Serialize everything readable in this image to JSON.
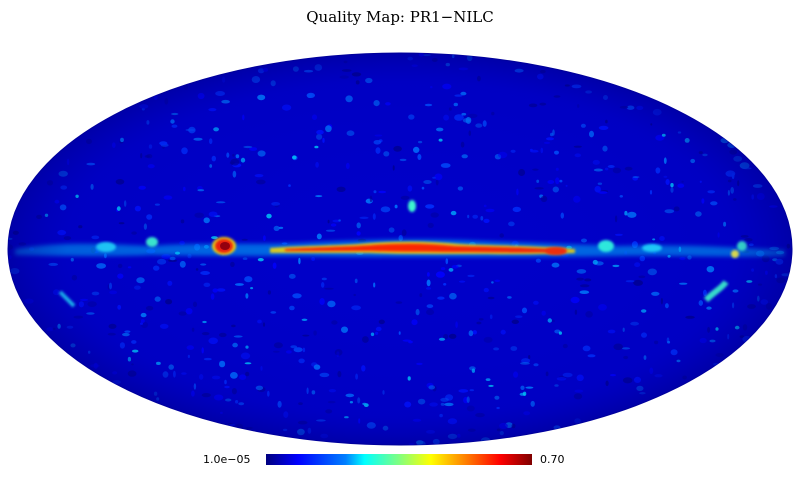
{
  "title": "Quality Map: PR1−NILC",
  "colorbar": {
    "min_label": "1.0e−05",
    "max_label": "0.70",
    "colormap": [
      "#00007f",
      "#0000ff",
      "#0080ff",
      "#00ffff",
      "#80ff80",
      "#ffff00",
      "#ff8000",
      "#ff0000",
      "#7f0000"
    ]
  },
  "projection": "mollweide",
  "colors": {
    "background": "#0000c8",
    "band": "#ff0000",
    "hotspot": "#b00000"
  }
}
